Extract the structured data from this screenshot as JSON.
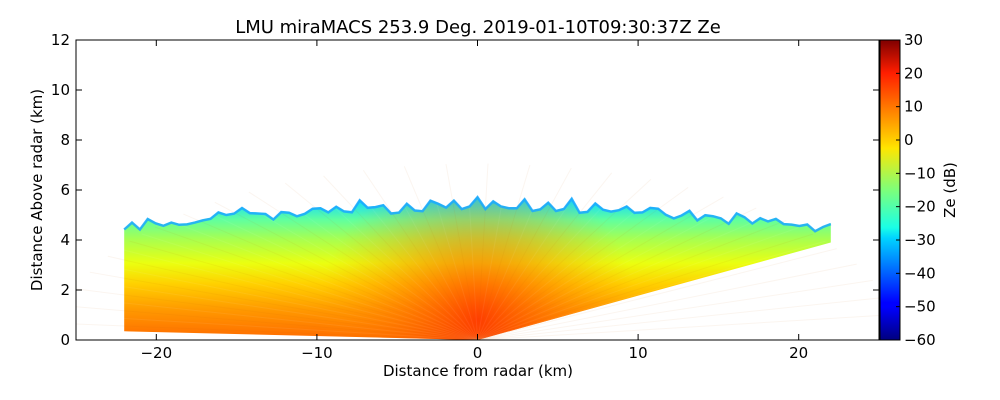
{
  "chart_data": {
    "type": "heatmap",
    "title": "LMU miraMACS 253.9 Deg. 2019-01-10T09:30:37Z  Ze",
    "xlabel": "Distance from radar (km)",
    "ylabel": "Distance Above radar  (km)",
    "xlim": [
      -25,
      25
    ],
    "ylim": [
      0,
      12
    ],
    "x_ticks": [
      -20,
      -10,
      0,
      10,
      20
    ],
    "x_tick_labels": [
      "−20",
      "−10",
      "0",
      "10",
      "20"
    ],
    "y_ticks": [
      0,
      2,
      4,
      6,
      8,
      10,
      12
    ],
    "y_tick_labels": [
      "0",
      "2",
      "4",
      "6",
      "8",
      "10",
      "12"
    ],
    "colorbar": {
      "label": "Ze (dB)",
      "range": [
        -60,
        30
      ],
      "ticks": [
        30,
        20,
        10,
        0,
        -10,
        -20,
        -30,
        -40,
        -50,
        -60
      ],
      "tick_labels": [
        "30",
        "20",
        "10",
        "0",
        "−10",
        "−20",
        "−30",
        "−40",
        "−50",
        "−60"
      ],
      "colormap": "jet"
    },
    "echo_region": {
      "description_units": "km",
      "left_edge_x": -22,
      "right_edge_x": 22,
      "left_bottom_y": 0.35,
      "left_top_y": 4.7,
      "right_bottom_y": 3.9,
      "right_top_y": 4.6,
      "cloud_top_center_y": 5.4,
      "origin": [
        0,
        0
      ],
      "near_surface_ze": 15,
      "mid_level_ze": -5,
      "cloud_top_ze": -28
    }
  }
}
